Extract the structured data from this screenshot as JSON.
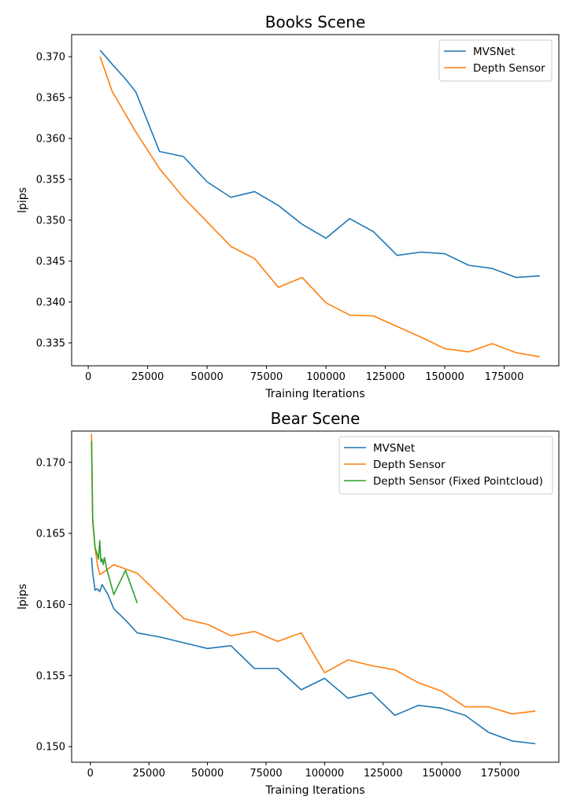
{
  "chart_data": [
    {
      "type": "line",
      "title": "Books Scene",
      "xlabel": "Training Iterations",
      "ylabel": "lpips",
      "xlim": [
        -7000,
        198000
      ],
      "ylim": [
        0.3322,
        0.3727
      ],
      "xticks": [
        0,
        25000,
        50000,
        75000,
        100000,
        125000,
        150000,
        175000
      ],
      "yticks": [
        0.335,
        0.34,
        0.345,
        0.35,
        0.355,
        0.36,
        0.365,
        0.37
      ],
      "yformat": 3,
      "legend": "top-right",
      "series": [
        {
          "name": "MVSNet",
          "color": "#1f77b4",
          "x": [
            5000,
            10000,
            15000,
            20000,
            30000,
            40000,
            50000,
            60000,
            70000,
            80000,
            90000,
            100000,
            110000,
            120000,
            130000,
            140000,
            150000,
            160000,
            170000,
            180000,
            190000
          ],
          "y": [
            0.3708,
            0.3691,
            0.3675,
            0.3657,
            0.3584,
            0.3578,
            0.3547,
            0.3528,
            0.3535,
            0.3518,
            0.3495,
            0.3478,
            0.3502,
            0.3486,
            0.3457,
            0.3461,
            0.3459,
            0.3445,
            0.3441,
            0.343,
            0.3432
          ]
        },
        {
          "name": "Depth Sensor",
          "color": "#ff7f0e",
          "x": [
            5000,
            10000,
            20000,
            30000,
            40000,
            50000,
            60000,
            70000,
            80000,
            90000,
            100000,
            110000,
            120000,
            130000,
            140000,
            150000,
            160000,
            170000,
            180000,
            190000
          ],
          "y": [
            0.37,
            0.3658,
            0.3608,
            0.3563,
            0.3528,
            0.3498,
            0.3468,
            0.3453,
            0.3418,
            0.343,
            0.3399,
            0.3384,
            0.3383,
            0.337,
            0.3357,
            0.3343,
            0.3339,
            0.3349,
            0.3338,
            0.3333
          ]
        }
      ]
    },
    {
      "type": "line",
      "title": "Bear Scene",
      "xlabel": "Training Iterations",
      "ylabel": "lpips",
      "xlim": [
        -8000,
        200000
      ],
      "ylim": [
        0.1489,
        0.1722
      ],
      "xticks": [
        0,
        25000,
        50000,
        75000,
        100000,
        125000,
        150000,
        175000
      ],
      "yticks": [
        0.15,
        0.155,
        0.16,
        0.165,
        0.17
      ],
      "yformat": 3,
      "legend": "top-right",
      "series": [
        {
          "name": "MVSNet",
          "color": "#1f77b4",
          "x": [
            500,
            1000,
            2000,
            3000,
            4000,
            5000,
            7500,
            10000,
            15000,
            20000,
            30000,
            40000,
            50000,
            60000,
            70000,
            80000,
            90000,
            100000,
            110000,
            120000,
            130000,
            140000,
            150000,
            160000,
            170000,
            180000,
            190000
          ],
          "y": [
            0.1633,
            0.1622,
            0.161,
            0.1611,
            0.1609,
            0.1614,
            0.1607,
            0.1597,
            0.1589,
            0.158,
            0.1577,
            0.1573,
            0.1569,
            0.1571,
            0.1555,
            0.1555,
            0.154,
            0.1548,
            0.1534,
            0.1538,
            0.1522,
            0.1529,
            0.1527,
            0.1522,
            0.151,
            0.1504,
            0.1502
          ]
        },
        {
          "name": "Depth Sensor",
          "color": "#ff7f0e",
          "x": [
            500,
            1000,
            2000,
            3000,
            4000,
            5000,
            7500,
            10000,
            20000,
            30000,
            40000,
            50000,
            60000,
            70000,
            80000,
            90000,
            100000,
            110000,
            120000,
            130000,
            140000,
            150000,
            160000,
            170000,
            180000,
            190000
          ],
          "y": [
            0.172,
            0.1658,
            0.164,
            0.1628,
            0.1621,
            0.1622,
            0.1625,
            0.1628,
            0.1622,
            0.1606,
            0.159,
            0.1586,
            0.1578,
            0.1581,
            0.1574,
            0.158,
            0.1552,
            0.1561,
            0.1557,
            0.1554,
            0.1545,
            0.1539,
            0.1528,
            0.1528,
            0.1523,
            0.1525
          ]
        },
        {
          "name": "Depth Sensor (Fixed Pointcloud)",
          "color": "#2ca02c",
          "x": [
            500,
            1000,
            2000,
            3000,
            3500,
            4000,
            4500,
            5000,
            5500,
            6000,
            7000,
            10000,
            15000,
            20000
          ],
          "y": [
            0.1715,
            0.166,
            0.164,
            0.1635,
            0.1632,
            0.1645,
            0.163,
            0.1632,
            0.1628,
            0.1633,
            0.1625,
            0.1607,
            0.1624,
            0.1601
          ]
        }
      ]
    }
  ]
}
